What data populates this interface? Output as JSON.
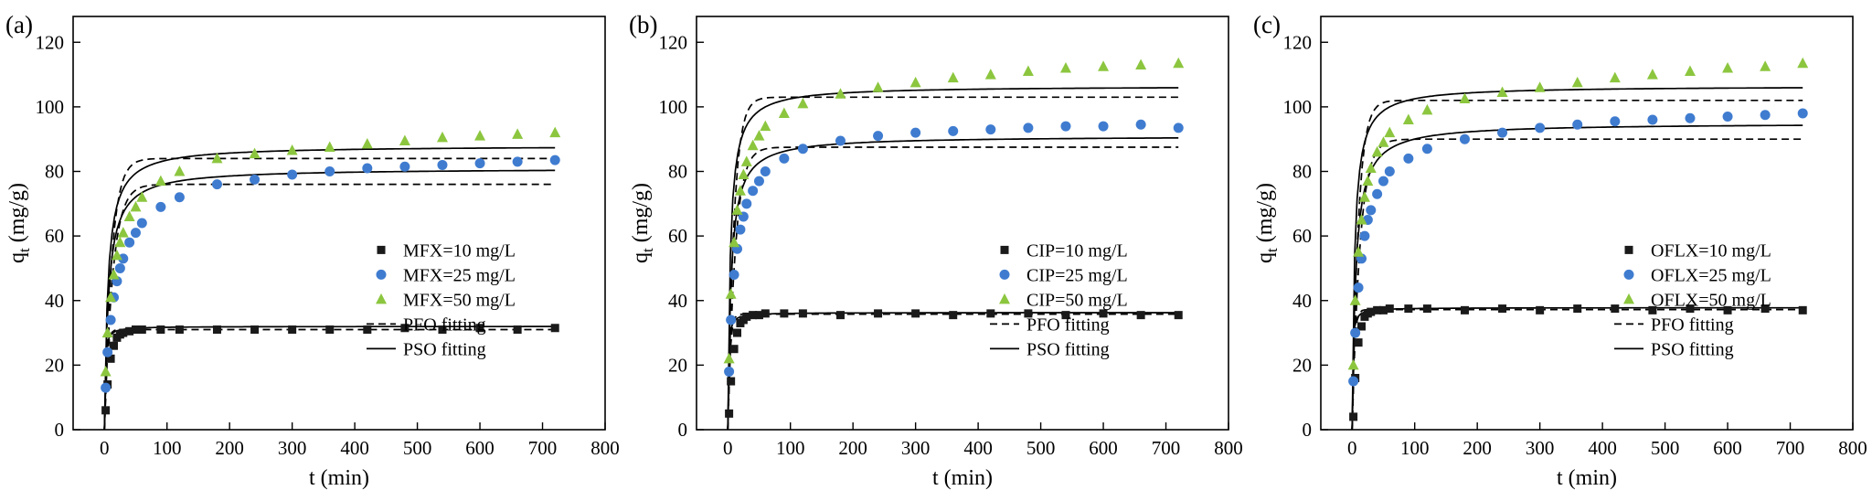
{
  "chart_data": [
    {
      "type": "scatter",
      "panel_label": "(a)",
      "xlabel": "t (min)",
      "ylabel": "qt (mg/g)",
      "ylabel_parts": {
        "base": "q",
        "sub": "t",
        "rest": " (mg/g)"
      },
      "xlim": [
        -50,
        800
      ],
      "ylim": [
        0,
        128
      ],
      "xticks": [
        0,
        100,
        200,
        300,
        400,
        500,
        600,
        700,
        800
      ],
      "yticks": [
        0,
        20,
        40,
        60,
        80,
        100,
        120
      ],
      "grid": false,
      "legend_position": "lower right",
      "line_color": "#000000",
      "t": [
        2,
        5,
        10,
        15,
        20,
        25,
        30,
        40,
        50,
        60,
        90,
        120,
        180,
        240,
        300,
        360,
        420,
        480,
        540,
        600,
        660,
        720
      ],
      "series": [
        {
          "name": "MFX=10 mg/L",
          "marker": "square",
          "color": "#1a1a1a",
          "q": [
            6,
            14,
            22,
            26,
            28.5,
            29.5,
            30,
            30.5,
            31,
            31,
            31,
            31,
            31,
            31,
            31,
            31,
            31,
            31.5,
            31,
            31.5,
            31,
            31.5
          ]
        },
        {
          "name": "MFX=25 mg/L",
          "marker": "circle",
          "color": "#3f7cd0",
          "q": [
            13,
            24,
            34,
            41,
            46,
            50,
            53,
            58,
            61,
            64,
            69,
            72,
            76,
            77.5,
            79,
            80,
            81,
            81.5,
            82,
            82.5,
            83,
            83.5
          ]
        },
        {
          "name": "MFX=50 mg/L",
          "marker": "triangle",
          "color": "#8cc63f",
          "q": [
            18,
            30,
            41,
            48,
            54,
            58,
            61,
            66,
            69,
            72,
            77,
            80,
            84,
            85.5,
            86.5,
            87.5,
            88.5,
            89.5,
            90.5,
            91,
            91.5,
            92
          ]
        }
      ],
      "fits": [
        {
          "label": "PFO fitting",
          "style": "dashed",
          "model": "PFO",
          "params": [
            {
              "qe": 31,
              "k": 0.3
            },
            {
              "qe": 76,
              "k": 0.075
            },
            {
              "qe": 84,
              "k": 0.085
            }
          ]
        },
        {
          "label": "PSO fitting",
          "style": "solid",
          "model": "PSO",
          "params": [
            {
              "qe": 32,
              "k": 0.035
            },
            {
              "qe": 81,
              "k": 0.002
            },
            {
              "qe": 88,
              "k": 0.0021
            }
          ]
        }
      ]
    },
    {
      "type": "scatter",
      "panel_label": "(b)",
      "xlabel": "t (min)",
      "ylabel": "qt (mg/g)",
      "ylabel_parts": {
        "base": "q",
        "sub": "t",
        "rest": " (mg/g)"
      },
      "xlim": [
        -50,
        800
      ],
      "ylim": [
        0,
        128
      ],
      "xticks": [
        0,
        100,
        200,
        300,
        400,
        500,
        600,
        700,
        800
      ],
      "yticks": [
        0,
        20,
        40,
        60,
        80,
        100,
        120
      ],
      "grid": false,
      "legend_position": "lower right",
      "line_color": "#000000",
      "t": [
        2,
        5,
        10,
        15,
        20,
        25,
        30,
        40,
        50,
        60,
        90,
        120,
        180,
        240,
        300,
        360,
        420,
        480,
        540,
        600,
        660,
        720
      ],
      "series": [
        {
          "name": "CIP=10 mg/L",
          "marker": "square",
          "color": "#1a1a1a",
          "q": [
            5,
            15,
            25,
            30,
            33,
            34,
            35,
            35.5,
            35.5,
            36,
            36,
            36,
            35.5,
            36,
            36,
            35.5,
            36,
            36,
            35.5,
            36,
            35.5,
            35.5
          ]
        },
        {
          "name": "CIP=25 mg/L",
          "marker": "circle",
          "color": "#3f7cd0",
          "q": [
            18,
            34,
            48,
            56,
            62,
            66,
            70,
            74,
            77,
            80,
            84,
            87,
            89.5,
            91,
            92,
            92.5,
            93,
            93.5,
            94,
            94,
            94.5,
            93.5
          ]
        },
        {
          "name": "CIP=50 mg/L",
          "marker": "triangle",
          "color": "#8cc63f",
          "q": [
            22,
            42,
            58,
            68,
            74,
            79,
            83,
            88,
            91,
            94,
            98,
            101,
            104,
            106,
            107.5,
            109,
            110,
            111,
            112,
            112.5,
            113,
            113.5
          ]
        }
      ],
      "fits": [
        {
          "label": "PFO fitting",
          "style": "dashed",
          "model": "PFO",
          "params": [
            {
              "qe": 35.8,
              "k": 0.3
            },
            {
              "qe": 87.5,
              "k": 0.085
            },
            {
              "qe": 103,
              "k": 0.1
            }
          ]
        },
        {
          "label": "PSO fitting",
          "style": "solid",
          "model": "PSO",
          "params": [
            {
              "qe": 36.3,
              "k": 0.035
            },
            {
              "qe": 91,
              "k": 0.0022
            },
            {
              "qe": 106.5,
              "k": 0.0024
            }
          ]
        }
      ]
    },
    {
      "type": "scatter",
      "panel_label": "(c)",
      "xlabel": "t (min)",
      "ylabel": "qt (mg/g)",
      "ylabel_parts": {
        "base": "q",
        "sub": "t",
        "rest": " (mg/g)"
      },
      "xlim": [
        -50,
        800
      ],
      "ylim": [
        0,
        128
      ],
      "xticks": [
        0,
        100,
        200,
        300,
        400,
        500,
        600,
        700,
        800
      ],
      "yticks": [
        0,
        20,
        40,
        60,
        80,
        100,
        120
      ],
      "grid": false,
      "legend_position": "lower right",
      "line_color": "#000000",
      "t": [
        2,
        5,
        10,
        15,
        20,
        25,
        30,
        40,
        50,
        60,
        90,
        120,
        180,
        240,
        300,
        360,
        420,
        480,
        540,
        600,
        660,
        720
      ],
      "series": [
        {
          "name": "OFLX=10 mg/L",
          "marker": "square",
          "color": "#1a1a1a",
          "q": [
            4,
            16,
            27,
            32,
            35,
            36,
            36.5,
            37,
            37,
            37.5,
            37.5,
            37.5,
            37,
            37.5,
            37,
            37.5,
            37.5,
            37,
            37.5,
            37,
            37.5,
            37
          ]
        },
        {
          "name": "OFLX=25 mg/L",
          "marker": "circle",
          "color": "#3f7cd0",
          "q": [
            15,
            30,
            44,
            53,
            60,
            65,
            68,
            73,
            77,
            80,
            84,
            87,
            90,
            92,
            93.5,
            94.5,
            95.5,
            96,
            96.5,
            97,
            97.5,
            98
          ]
        },
        {
          "name": "OFLX=50 mg/L",
          "marker": "triangle",
          "color": "#8cc63f",
          "q": [
            20,
            40,
            55,
            65,
            72,
            77,
            81,
            86,
            89,
            92,
            96,
            99,
            102.5,
            104.5,
            106,
            107.5,
            109,
            110,
            111,
            112,
            112.5,
            113.5
          ]
        }
      ],
      "fits": [
        {
          "label": "PFO fitting",
          "style": "dashed",
          "model": "PFO",
          "params": [
            {
              "qe": 37.2,
              "k": 0.3
            },
            {
              "qe": 90,
              "k": 0.08
            },
            {
              "qe": 102,
              "k": 0.1
            }
          ]
        },
        {
          "label": "PSO fitting",
          "style": "solid",
          "model": "PSO",
          "params": [
            {
              "qe": 37.8,
              "k": 0.035
            },
            {
              "qe": 95,
              "k": 0.0019
            },
            {
              "qe": 106.5,
              "k": 0.0024
            }
          ]
        }
      ]
    }
  ]
}
